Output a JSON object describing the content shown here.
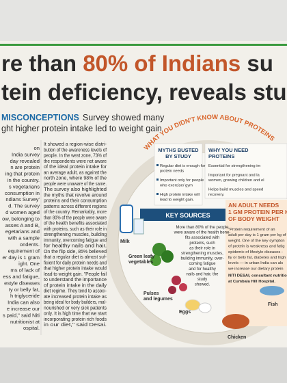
{
  "headline": {
    "line1": [
      "re than ",
      "80% of Indians",
      " su"
    ],
    "line2": "tein deficiency, reveals stu"
  },
  "subhead": {
    "label": "MISCONCEPTIONS",
    "lines": [
      "Survey showed many",
      "ght higher protein intake led to weight gain"
    ]
  },
  "columns": {
    "col1": [
      "on",
      "India survey",
      "day revealed",
      "n are protein",
      "ing that protein",
      "in the country.",
      "s vegetarians",
      "consumption in",
      "ndians Survey'",
      "d. The survey",
      "d women aged",
      "ow, belonging to",
      "asses A and B,",
      "egetarians and",
      "with a sample",
      "ondents.",
      "equirement of",
      "er day is 1 gram",
      "ight. One",
      "ms of lack of",
      "ess and fatigue,",
      "estyle diseases",
      "ty or belly fat,",
      "h triglyceride",
      "India can also",
      "e increase our",
      "s paid,\" said Niti",
      "nutritionist at",
      "ospital."
    ],
    "col2": [
      "It showed a region-wise distri-",
      "bution of the awareness levels of",
      "people. In the west zone, 73% of",
      "the respondents were not aware",
      "of the ideal protein intake for",
      "an average adult, as against the",
      "north zone, where 98% of the",
      "people were unaware of the same.",
      "The survey also highlighted",
      "the myths that revolve around",
      "proteins and their consumption",
      "patterns across different regions",
      "of the country. Remarkably, more",
      "than 80% of the people were aware",
      "of the health benefits associated",
      "with proteins, such as their role in",
      "strengthening muscles, building",
      "immunity, overcoming fatigue and",
      "for healthy nails and hair.",
      "On the flip side, 85% believed",
      "that a regular diet is almost suf-",
      "ficient for daily protein needs and",
      "that higher protein intake would",
      "lead to weight gain. \"People fail",
      "to understand the importance",
      "of protein intake in the daily",
      "diet regime. They tend to associ-",
      "ate increased protein intake as",
      "being ideal for body builders, mal-",
      "nourished or very sick patients",
      "only. It is high time that we start",
      "incorporating protein rich foods",
      "in our diet,\" said Desai."
    ]
  },
  "infographic": {
    "title": "WHAT YOU DIDN'T KNOW ABOUT PROTEINS",
    "myths": {
      "heading": [
        "MYTHS BUSTED",
        "BY STUDY"
      ],
      "items": [
        [
          "Regular diet is enough for",
          "protein needs"
        ],
        [
          "Important only for people",
          "who exercise/ gym"
        ],
        [
          "High protein intake will",
          "lead to weight gain."
        ]
      ]
    },
    "why": {
      "heading": [
        "WHY YOU NEED",
        "PROTEINS"
      ],
      "items": [
        [
          "Essential for strengthening im"
        ],
        [
          "Important for pregnant and la",
          "women, growing children and el"
        ],
        [
          "Helps build muscles and speed",
          "recovery."
        ]
      ]
    },
    "key_sources": {
      "heading": "KEY SOURCES",
      "text": [
        "More than 80% of the people",
        "were aware of the health bene-",
        "fits associated with",
        "proteins, such",
        "as their role in",
        "strengthening muscles,",
        "building immunity, over-",
        "coming fatigue",
        "and for healthy",
        "nails and hair, the",
        "study",
        "showed."
      ]
    },
    "foods": [
      "Milk",
      "Green leafy",
      "vegetables",
      "Pulses",
      "and legumes",
      "Eggs",
      "Chicken",
      "Fish"
    ],
    "adult": {
      "heading": [
        "AN ADULT NEEDS",
        "1 GM PROTEIN PER KG",
        "OF BODY WEIGHT"
      ],
      "text": [
        "\"Protein requirement of an",
        "adult per day is 1 gram per kg of",
        "weight. One of the key sympton",
        "of protein is weakness and fatig",
        "epidemic of lifestyle diseases -",
        "lly or belly fat, diabetes and high",
        "levels — in urban India can als",
        "we increase our dietary protein"
      ],
      "credit": [
        "NITI DESAI, consultant nutrition",
        "at Cumbala Hill Hospital."
      ]
    }
  }
}
